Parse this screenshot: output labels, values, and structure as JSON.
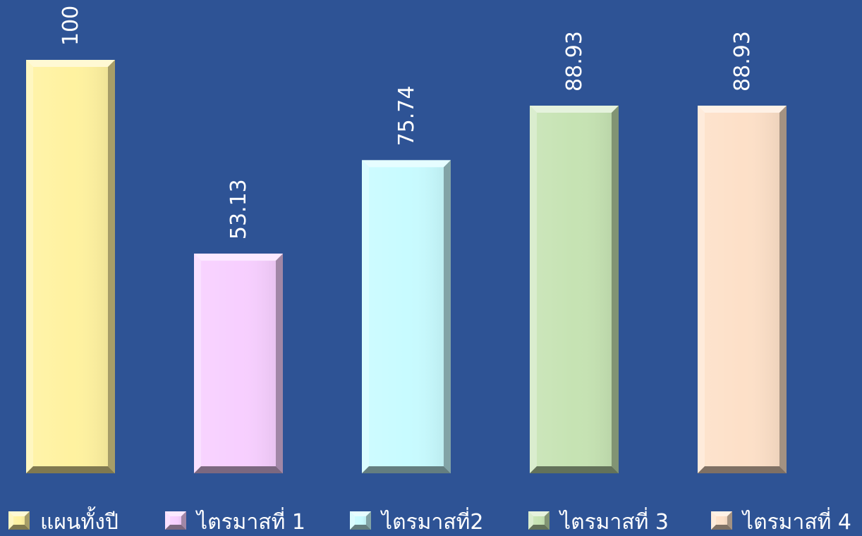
{
  "chart_data": {
    "type": "bar",
    "categories": [
      "แผนทั้งปี",
      "ไตรมาสที่ 1",
      "ไตรมาสที่2",
      "ไตรมาสที่ 3",
      "ไตรมาสที่ 4"
    ],
    "series": [
      {
        "values": [
          100,
          53.13,
          75.74,
          88.93,
          88.93
        ]
      }
    ],
    "value_labels": [
      "100",
      "53.13",
      "75.74",
      "88.93",
      "88.93"
    ],
    "colors": [
      "#fff2a0",
      "#f7cfff",
      "#c8fbff",
      "#c6e3b3",
      "#fde0c8"
    ],
    "ylim": [
      0,
      100
    ],
    "grid": false,
    "legend_position": "bottom",
    "background": "#2e5395"
  }
}
